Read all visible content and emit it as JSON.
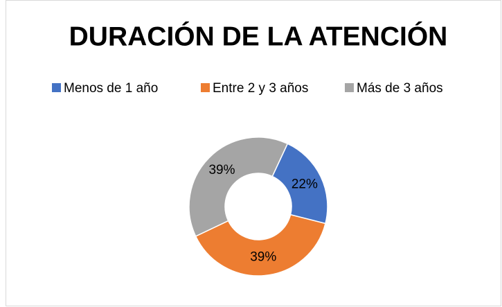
{
  "chart_data": {
    "type": "pie",
    "title": "DURACIÓN DE LA ATENCIÓN",
    "categories": [
      "Menos de 1 año",
      "Entre 2 y 3 años",
      "Más de 3 años"
    ],
    "values": [
      22,
      39,
      39
    ],
    "value_labels": [
      "22%",
      "39%",
      "39%"
    ],
    "colors": [
      "#4472c4",
      "#ed7d31",
      "#a5a5a5"
    ],
    "donut": true,
    "first_slice_angle": 25,
    "legend": "top"
  }
}
